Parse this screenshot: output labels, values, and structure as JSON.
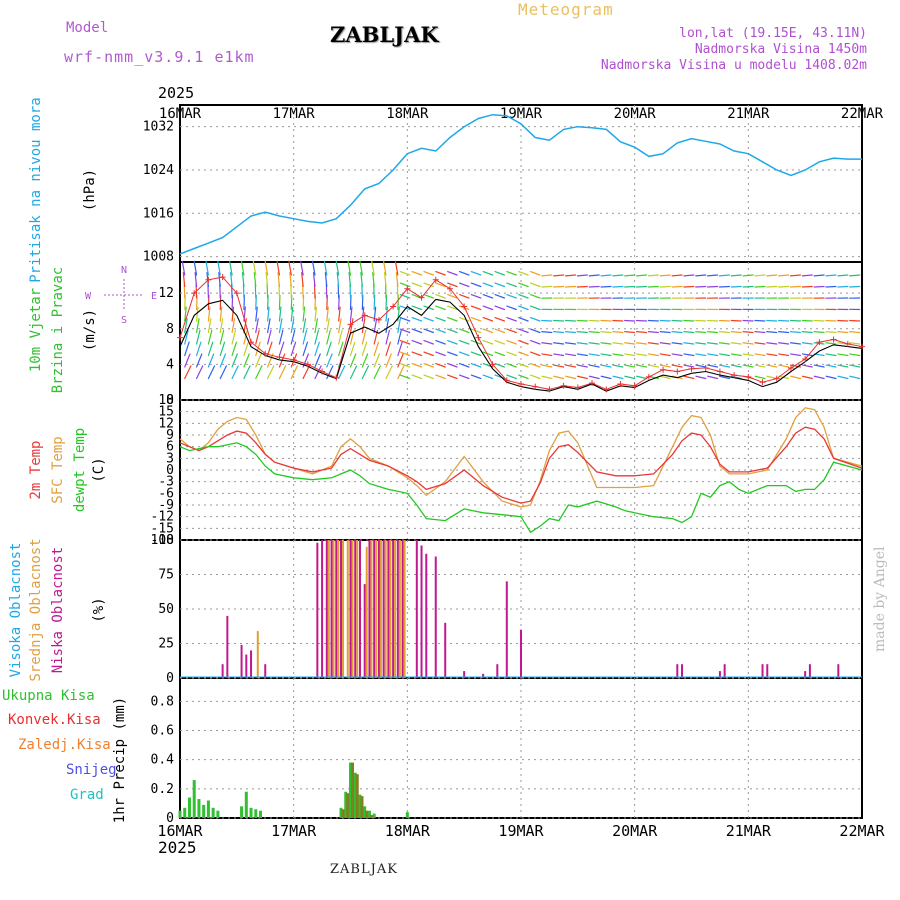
{
  "header": {
    "model_label": "Model",
    "model": "wrf-nmm_v3.9.1 e1km",
    "station": "ZABLJAK",
    "type": "Meteogram",
    "lonlat": "lon,lat (19.15E, 43.11N)",
    "elevation": "Nadmorska Visina 1450m",
    "model_elevation": "Nadmorska Visina u modelu 1408.02m"
  },
  "footer": {
    "station": "ZABLJAK",
    "year_top": "2025",
    "year_bottom": "2025",
    "credit": "made by Angel"
  },
  "colors": {
    "pressure": "#1ea8e8",
    "wind_speed": "#000000",
    "wind_gust": "#e83030",
    "temp2m": "#e83838",
    "sfc_temp": "#e0a040",
    "dewpt": "#22c822",
    "cloud_high": "#1ea8e8",
    "cloud_mid": "#e0a030",
    "cloud_low": "#c01890",
    "rain_total": "#30c030",
    "rain_conv": "#e83030",
    "rain_frozen": "#f08030",
    "snow": "#5050e0",
    "graupel": "#20c0c0",
    "accent_purple": "#b050d0"
  },
  "x_axis": {
    "labels": [
      "16MAR",
      "17MAR",
      "18MAR",
      "19MAR",
      "20MAR",
      "21MAR",
      "22MAR"
    ],
    "hours_total": 144
  },
  "chart_data": [
    {
      "type": "line",
      "panel": "pressure",
      "ylabels": [
        "Pritisak na nivou mora",
        "(hPa)"
      ],
      "yticks": [
        "1008",
        "1016",
        "1024",
        "1032"
      ],
      "ylim": [
        1007,
        1036
      ],
      "series": [
        {
          "name": "Pritisak na nivou mora",
          "x": [
            0,
            3,
            6,
            9,
            12,
            15,
            18,
            21,
            24,
            27,
            30,
            33,
            36,
            39,
            42,
            45,
            48,
            51,
            54,
            57,
            60,
            63,
            66,
            69,
            72,
            75,
            78,
            81,
            84,
            87,
            90,
            93,
            96,
            99,
            102,
            105,
            108,
            111,
            114,
            117,
            120,
            123,
            126,
            129,
            132,
            135,
            138,
            141,
            144
          ],
          "values": [
            1008.5,
            1009.5,
            1010.5,
            1011.5,
            1013.5,
            1015.5,
            1016.2,
            1015.5,
            1015,
            1014.5,
            1014.2,
            1015,
            1017.5,
            1020.5,
            1021.5,
            1024,
            1027,
            1028,
            1027.5,
            1030,
            1032,
            1033.5,
            1034.2,
            1034,
            1032.5,
            1030,
            1029.5,
            1031.5,
            1032,
            1031.8,
            1031.5,
            1029.2,
            1028.2,
            1026.5,
            1027,
            1029,
            1029.8,
            1029.3,
            1028.8,
            1027.5,
            1027,
            1025.5,
            1024,
            1023,
            1024,
            1025.5,
            1026.2,
            1026,
            1026
          ]
        }
      ]
    },
    {
      "type": "line",
      "panel": "wind",
      "ylabels": [
        "10m Vjetar",
        "Brzina i Pravac",
        "(m/s)"
      ],
      "compass": [
        "N",
        "E",
        "S",
        "W"
      ],
      "yticks": [
        "0",
        "4",
        "8",
        "12"
      ],
      "ylim": [
        0,
        15.5
      ],
      "series": [
        {
          "name": "Brzina",
          "x": [
            0,
            3,
            6,
            9,
            12,
            15,
            18,
            21,
            24,
            27,
            30,
            33,
            36,
            39,
            42,
            45,
            48,
            51,
            54,
            57,
            60,
            63,
            66,
            69,
            72,
            75,
            78,
            81,
            84,
            87,
            90,
            93,
            96,
            99,
            102,
            105,
            108,
            111,
            114,
            117,
            120,
            123,
            126,
            129,
            132,
            135,
            138,
            141,
            144
          ],
          "values": [
            6,
            9.5,
            10.8,
            11.2,
            9.5,
            6,
            5,
            4.5,
            4.3,
            3.8,
            3,
            2.4,
            7.5,
            8.2,
            7.5,
            8.5,
            10.5,
            9.5,
            11.3,
            11,
            9.5,
            6,
            3.5,
            2,
            1.5,
            1.2,
            1,
            1.5,
            1.2,
            1.8,
            1,
            1.6,
            1.4,
            2.2,
            2.8,
            2.5,
            3,
            3.2,
            2.8,
            2.5,
            2.2,
            1.5,
            2,
            3.2,
            4.3,
            5.5,
            6.2,
            6,
            5.8
          ]
        },
        {
          "name": "Udari",
          "x": [
            0,
            3,
            6,
            9,
            12,
            15,
            18,
            21,
            24,
            27,
            30,
            33,
            36,
            39,
            42,
            45,
            48,
            51,
            54,
            57,
            60,
            63,
            66,
            69,
            72,
            75,
            78,
            81,
            84,
            87,
            90,
            93,
            96,
            99,
            102,
            105,
            108,
            111,
            114,
            117,
            120,
            123,
            126,
            129,
            132,
            135,
            138,
            141,
            144
          ],
          "values": [
            7,
            12,
            13.5,
            13.8,
            12,
            6.5,
            5.2,
            4.8,
            4.5,
            4,
            3.2,
            2.5,
            8.5,
            9.5,
            9,
            10.5,
            12.5,
            11.5,
            13.5,
            12.5,
            10.5,
            7,
            4,
            2.2,
            1.8,
            1.5,
            1.2,
            1.6,
            1.4,
            1.9,
            1.2,
            1.8,
            1.6,
            2.6,
            3.4,
            3.2,
            3.5,
            3.6,
            3.2,
            2.8,
            2.6,
            2,
            2.4,
            3.6,
            4.6,
            6.5,
            6.8,
            6.3,
            6
          ]
        }
      ]
    },
    {
      "type": "line",
      "panel": "temperature",
      "ylabels": [
        "2m Temp",
        "SFC Temp",
        "dewpt Temp",
        "(C)"
      ],
      "yticks": [
        "-18",
        "-15",
        "-12",
        "-9",
        "-6",
        "-3",
        "0",
        "3",
        "6",
        "9",
        "12",
        "15",
        "18"
      ],
      "ylim": [
        -18,
        18
      ],
      "series": [
        {
          "name": "2m Temp",
          "x": [
            0,
            2,
            4,
            6,
            8,
            10,
            12,
            14,
            16,
            18,
            20,
            24,
            28,
            32,
            34,
            36,
            38,
            40,
            44,
            48,
            50,
            52,
            56,
            60,
            64,
            68,
            72,
            74,
            76,
            78,
            80,
            82,
            84,
            88,
            92,
            94,
            96,
            100,
            104,
            106,
            108,
            110,
            112,
            114,
            116,
            118,
            120,
            124,
            128,
            130,
            132,
            134,
            136,
            138,
            144
          ],
          "values": [
            7,
            6,
            5,
            6,
            7.5,
            9,
            10,
            9.5,
            7,
            4,
            2,
            0.5,
            -0.5,
            0.5,
            4,
            5.5,
            4,
            2.5,
            1,
            -1.5,
            -3,
            -5,
            -3.5,
            0,
            -4,
            -7,
            -8.5,
            -8,
            -3.5,
            3,
            6,
            6.5,
            4.5,
            -0.5,
            -1.5,
            -1.5,
            -1.5,
            -1,
            4,
            7.5,
            9.5,
            9,
            6,
            1.5,
            -0.5,
            -0.5,
            -0.5,
            0.5,
            6,
            9.5,
            11,
            10.5,
            8,
            3,
            0.5
          ]
        },
        {
          "name": "SFC Temp",
          "x": [
            0,
            2,
            4,
            6,
            8,
            10,
            12,
            14,
            16,
            18,
            20,
            24,
            28,
            32,
            34,
            36,
            38,
            40,
            44,
            48,
            50,
            52,
            56,
            60,
            64,
            68,
            72,
            74,
            76,
            78,
            80,
            82,
            84,
            88,
            92,
            94,
            96,
            100,
            104,
            106,
            108,
            110,
            112,
            114,
            116,
            118,
            120,
            124,
            128,
            130,
            132,
            134,
            136,
            138,
            144
          ],
          "values": [
            8,
            6,
            5,
            7,
            10.5,
            12.5,
            13.5,
            13,
            9,
            4,
            2,
            0.5,
            -1,
            1,
            6,
            8,
            6,
            3,
            1,
            -2,
            -4,
            -6.5,
            -3,
            3.5,
            -3,
            -8,
            -9.5,
            -9,
            -3,
            5,
            9.5,
            10,
            7,
            -4.5,
            -4.5,
            -4.5,
            -4.5,
            -4,
            6,
            11,
            14,
            13.5,
            9,
            1,
            -1,
            -1,
            -1,
            0,
            8,
            13.5,
            16,
            15.5,
            11,
            3,
            1
          ]
        },
        {
          "name": "dewpt Temp",
          "x": [
            0,
            2,
            4,
            6,
            8,
            10,
            12,
            14,
            16,
            18,
            20,
            24,
            28,
            32,
            34,
            36,
            38,
            40,
            44,
            48,
            50,
            52,
            56,
            60,
            64,
            68,
            72,
            74,
            76,
            78,
            80,
            82,
            84,
            88,
            92,
            94,
            96,
            100,
            104,
            106,
            108,
            110,
            112,
            114,
            116,
            118,
            120,
            124,
            128,
            130,
            132,
            134,
            136,
            138,
            144
          ],
          "values": [
            6,
            5,
            5.5,
            6,
            6,
            6.5,
            7,
            6,
            4,
            1,
            -1,
            -2,
            -2.5,
            -2,
            -1,
            0,
            -1.5,
            -3.5,
            -5,
            -6,
            -9,
            -12.5,
            -13,
            -10,
            -11,
            -11.5,
            -12,
            -16,
            -14.5,
            -12.5,
            -13,
            -9,
            -9.5,
            -8,
            -9.5,
            -10.5,
            -11,
            -12,
            -12.5,
            -13.5,
            -12,
            -6,
            -7,
            -4,
            -3,
            -5,
            -6,
            -4,
            -4,
            -5.5,
            -5,
            -5,
            -2.5,
            2,
            0
          ]
        }
      ]
    },
    {
      "type": "bar",
      "panel": "clouds",
      "ylabels": [
        "Visoka Oblacnost",
        "Srednja Oblacnost",
        "Niska Oblacnost",
        "(%)"
      ],
      "yticks": [
        "0",
        "25",
        "50",
        "75",
        "100"
      ],
      "ylim": [
        0,
        100
      ],
      "series": [
        {
          "name": "Niska Oblacnost",
          "x": [
            9,
            10,
            13,
            14,
            15,
            18,
            29,
            30,
            31,
            32,
            33,
            34,
            36,
            37,
            38,
            39,
            40,
            41,
            42,
            43,
            44,
            45,
            46,
            47,
            50,
            51,
            52,
            54,
            56,
            60,
            64,
            67,
            69,
            72,
            105,
            106,
            114,
            115,
            123,
            124,
            132,
            133,
            139
          ],
          "values": [
            10,
            45,
            24,
            17,
            20,
            10,
            98,
            100,
            100,
            100,
            100,
            100,
            100,
            100,
            100,
            68,
            100,
            100,
            100,
            100,
            100,
            100,
            100,
            100,
            100,
            96,
            90,
            88,
            40,
            5,
            3,
            10,
            70,
            35,
            10,
            10,
            5,
            10,
            10,
            10,
            5,
            10,
            10
          ]
        },
        {
          "name": "Srednja Oblacnost",
          "x": [
            16,
            31,
            32,
            33,
            34,
            35,
            36,
            37,
            39,
            40,
            41,
            42,
            43,
            44,
            45,
            46,
            47
          ],
          "values": [
            34,
            100,
            100,
            100,
            100,
            100,
            100,
            100,
            95,
            100,
            100,
            100,
            100,
            100,
            100,
            100,
            100
          ]
        },
        {
          "name": "Visoka Oblacnost",
          "x": [],
          "values": []
        }
      ]
    },
    {
      "type": "bar",
      "panel": "precipitation",
      "ylabels": [
        "Ukupna Kisa",
        "Konvek.Kisa",
        "Zaledj.Kisa",
        "Snijeg",
        "Grad",
        "1hr Precip (mm)"
      ],
      "yticks": [
        "0",
        "0.2",
        "0.4",
        "0.6",
        "0.8"
      ],
      "ylim": [
        0,
        0.96
      ],
      "series": [
        {
          "name": "Ukupna Kisa",
          "x": [
            0,
            1,
            2,
            3,
            4,
            5,
            6,
            7,
            8,
            13,
            14,
            15,
            16,
            17,
            34,
            35,
            36,
            37,
            38,
            39,
            40,
            41,
            48
          ],
          "values": [
            0.05,
            0.07,
            0.14,
            0.26,
            0.13,
            0.09,
            0.12,
            0.07,
            0.05,
            0.08,
            0.18,
            0.07,
            0.06,
            0.05,
            0.07,
            0.18,
            0.38,
            0.31,
            0.16,
            0.08,
            0.05,
            0.03,
            0.04
          ]
        },
        {
          "name": "Konvek.Kisa",
          "x": [],
          "values": []
        },
        {
          "name": "Zaledj.Kisa",
          "x": [],
          "values": []
        },
        {
          "name": "Snijeg",
          "x": [
            34,
            35,
            36,
            37,
            38,
            39,
            40
          ],
          "values": [
            0.06,
            0.17,
            0.38,
            0.3,
            0.15,
            0.05,
            0.02
          ]
        },
        {
          "name": "Grad",
          "x": [],
          "values": []
        }
      ]
    }
  ]
}
